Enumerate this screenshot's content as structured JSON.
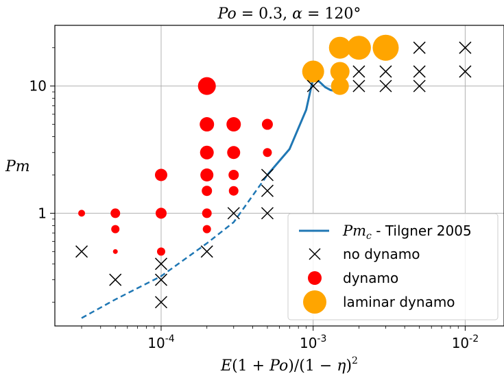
{
  "chart_data": {
    "type": "scatter",
    "title": "Po = 0.3, α = 120°",
    "xlabel": "E(1 + Po)/(1 − η)²",
    "ylabel": "Pm",
    "xscale": "log",
    "yscale": "log",
    "xlim": [
      2e-05,
      0.018
    ],
    "ylim": [
      0.13,
      30
    ],
    "grid": true,
    "legend_position": "lower-right",
    "x_ticks": [
      {
        "value": 0.0001,
        "base": "10",
        "exp": "-4"
      },
      {
        "value": 0.001,
        "base": "10",
        "exp": "-3"
      },
      {
        "value": 0.01,
        "base": "10",
        "exp": "-2"
      }
    ],
    "y_ticks": [
      {
        "value": 1,
        "label": "1"
      },
      {
        "value": 10,
        "label": "10"
      }
    ],
    "series": [
      {
        "name": "no dynamo",
        "marker": "x",
        "color": "#000000",
        "points": [
          [
            3e-05,
            0.5
          ],
          [
            5e-05,
            0.3
          ],
          [
            0.0001,
            0.4
          ],
          [
            0.0001,
            0.3
          ],
          [
            0.0001,
            0.2
          ],
          [
            0.0002,
            0.5
          ],
          [
            0.0003,
            1
          ],
          [
            0.0005,
            2
          ],
          [
            0.0005,
            1.5
          ],
          [
            0.0005,
            1
          ],
          [
            0.001,
            10
          ],
          [
            0.002,
            10
          ],
          [
            0.002,
            13
          ],
          [
            0.003,
            10
          ],
          [
            0.003,
            13
          ],
          [
            0.005,
            10
          ],
          [
            0.005,
            13
          ],
          [
            0.005,
            20
          ],
          [
            0.01,
            13
          ],
          [
            0.01,
            20
          ]
        ]
      },
      {
        "name": "dynamo",
        "marker": "circle",
        "color": "#ff0000",
        "points": [
          [
            3e-05,
            1,
            5
          ],
          [
            5e-05,
            1,
            7
          ],
          [
            5e-05,
            0.75,
            6
          ],
          [
            5e-05,
            0.5,
            3.5
          ],
          [
            0.0001,
            2,
            9
          ],
          [
            0.0001,
            1,
            8
          ],
          [
            0.0001,
            0.5,
            6
          ],
          [
            0.0002,
            10,
            13
          ],
          [
            0.0002,
            5,
            10.5
          ],
          [
            0.0002,
            3,
            10
          ],
          [
            0.0002,
            2,
            9.5
          ],
          [
            0.0002,
            1.5,
            7.5
          ],
          [
            0.0002,
            1,
            7
          ],
          [
            0.0002,
            0.75,
            6
          ],
          [
            0.0003,
            5,
            10.5
          ],
          [
            0.0003,
            3,
            9.5
          ],
          [
            0.0003,
            2,
            7.5
          ],
          [
            0.0003,
            1.5,
            7
          ],
          [
            0.0005,
            5,
            8
          ],
          [
            0.0005,
            3,
            6.5
          ]
        ]
      },
      {
        "name": "laminar dynamo",
        "marker": "circle",
        "color": "#ffa500",
        "points": [
          [
            0.001,
            13,
            16
          ],
          [
            0.0015,
            20,
            16
          ],
          [
            0.0015,
            13,
            14
          ],
          [
            0.0015,
            10,
            13
          ],
          [
            0.002,
            20,
            17.5
          ],
          [
            0.003,
            20,
            19
          ]
        ]
      },
      {
        "name": "Pm_c - Tilgner 2005",
        "legend_math": "Pm",
        "legend_sub": "c",
        "legend_suffix": " - Tilgner 2005",
        "marker": "line",
        "color": "#1f77b4",
        "solid": [
          [
            0.0005,
            2
          ],
          [
            0.0007,
            3.2
          ],
          [
            0.0009,
            6.5
          ],
          [
            0.001,
            11.5
          ],
          [
            0.0011,
            10.8
          ],
          [
            0.0012,
            9.8
          ],
          [
            0.0013,
            9.3
          ],
          [
            0.0015,
            9
          ]
        ],
        "dashed": [
          [
            3e-05,
            0.15
          ],
          [
            5e-05,
            0.21
          ],
          [
            0.0001,
            0.32
          ],
          [
            0.0002,
            0.58
          ],
          [
            0.0003,
            0.85
          ],
          [
            0.0005,
            2
          ]
        ]
      }
    ]
  },
  "title": {
    "prefix": "Po",
    "mid": " = 0.3, ",
    "alpha": "α",
    "suffix": " = 120°"
  },
  "axis_labels": {
    "x_e": "E",
    "x_open1": "(1 + ",
    "x_po": "Po",
    "x_mid": ")/(1 − ",
    "x_eta": "η",
    "x_close": ")",
    "x_sup": "2",
    "y": "Pm"
  },
  "legend": {
    "line_math": "Pm",
    "line_sub": "c",
    "line_suffix": " - Tilgner 2005",
    "no_dynamo": "no dynamo",
    "dynamo": "dynamo",
    "laminar": "laminar dynamo"
  }
}
